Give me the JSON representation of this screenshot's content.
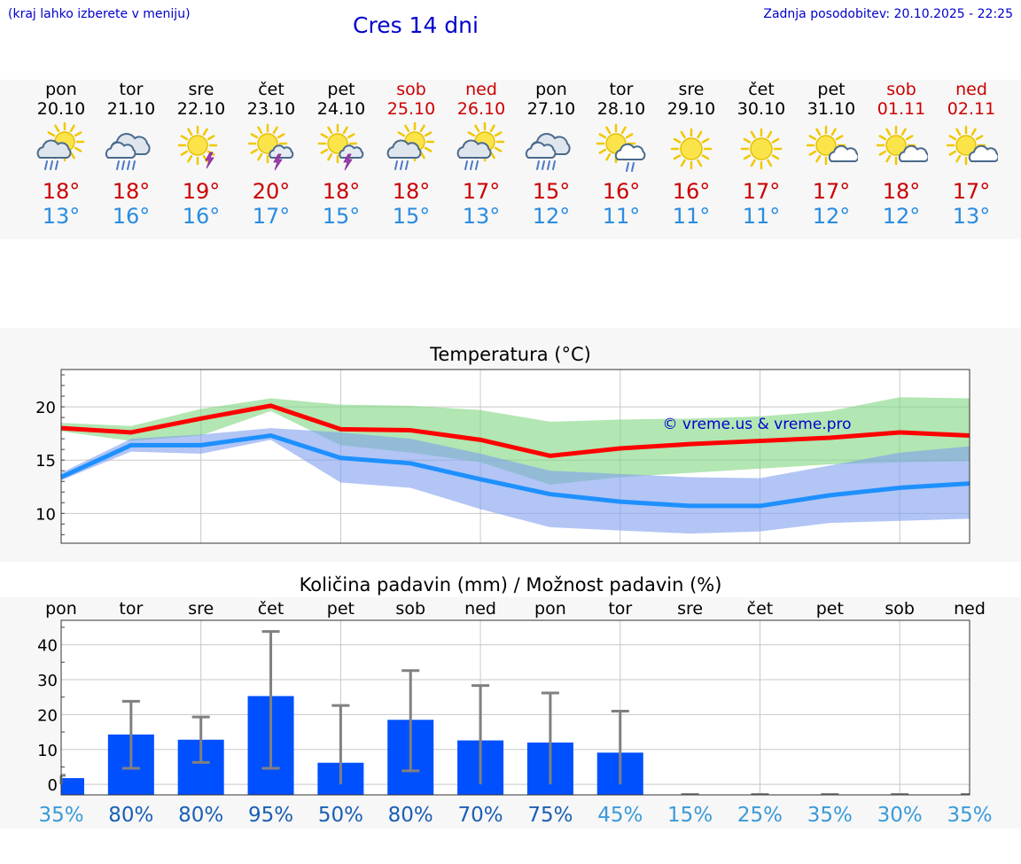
{
  "header": {
    "hint": "(kraj lahko izberete v meniju)",
    "title": "Cres 14 dni",
    "updated": "Zadnja posodobitev: 20.10.2025 - 22:25"
  },
  "days": [
    {
      "name": "pon",
      "date": "20.10",
      "weekend": false,
      "icon": "sun-cloud-rain-icon",
      "max": "18°",
      "min": "13°"
    },
    {
      "name": "tor",
      "date": "21.10",
      "weekend": false,
      "icon": "cloud-rain-icon",
      "max": "18°",
      "min": "16°"
    },
    {
      "name": "sre",
      "date": "22.10",
      "weekend": false,
      "icon": "sun-thunder-icon",
      "max": "19°",
      "min": "16°"
    },
    {
      "name": "čet",
      "date": "23.10",
      "weekend": false,
      "icon": "sun-cloud-thunder-icon",
      "max": "20°",
      "min": "17°"
    },
    {
      "name": "pet",
      "date": "24.10",
      "weekend": false,
      "icon": "sun-cloud-thunder-icon",
      "max": "18°",
      "min": "15°"
    },
    {
      "name": "sob",
      "date": "25.10",
      "weekend": true,
      "icon": "sun-cloud-rain-icon",
      "max": "18°",
      "min": "15°"
    },
    {
      "name": "ned",
      "date": "26.10",
      "weekend": true,
      "icon": "sun-cloud-rain-icon",
      "max": "17°",
      "min": "13°"
    },
    {
      "name": "pon",
      "date": "27.10",
      "weekend": false,
      "icon": "cloud-rain-icon",
      "max": "15°",
      "min": "12°"
    },
    {
      "name": "tor",
      "date": "28.10",
      "weekend": false,
      "icon": "sun-cloud-drizzle-icon",
      "max": "16°",
      "min": "11°"
    },
    {
      "name": "sre",
      "date": "29.10",
      "weekend": false,
      "icon": "sun-icon",
      "max": "16°",
      "min": "11°"
    },
    {
      "name": "čet",
      "date": "30.10",
      "weekend": false,
      "icon": "sun-icon",
      "max": "17°",
      "min": "11°"
    },
    {
      "name": "pet",
      "date": "31.10",
      "weekend": false,
      "icon": "sun-small-cloud-icon",
      "max": "17°",
      "min": "12°"
    },
    {
      "name": "sob",
      "date": "01.11",
      "weekend": true,
      "icon": "sun-small-cloud-icon",
      "max": "18°",
      "min": "12°"
    },
    {
      "name": "ned",
      "date": "02.11",
      "weekend": true,
      "icon": "sun-small-cloud-icon",
      "max": "17°",
      "min": "13°"
    }
  ],
  "colors": {
    "max_line": "#ff0000",
    "min_line": "#1e90ff",
    "max_band": "#7fd67f",
    "min_band": "#7f9fef",
    "bar": "#0050ff",
    "whisker": "#808080",
    "weekend_text": "#cc0000",
    "min_text": "#2a8ce0",
    "pct_high": "#1a5fb4",
    "pct_low": "#3a9ad9"
  },
  "chart_data": [
    {
      "type": "line",
      "title": "Temperatura (°C)",
      "watermark": "© vreme.us & vreme.pro",
      "x_count": 14,
      "ylim": [
        7.2,
        23.5
      ],
      "yticks": [
        10,
        15,
        20
      ],
      "grid": true,
      "series": [
        {
          "values": [
            18.0,
            17.6,
            18.9,
            20.1,
            17.9,
            17.8,
            16.9,
            15.4,
            16.1,
            16.5,
            16.8,
            17.1,
            17.6,
            17.3
          ]
        },
        {
          "values": [
            13.4,
            16.4,
            16.4,
            17.3,
            15.2,
            14.7,
            13.2,
            11.8,
            11.1,
            10.7,
            10.7,
            11.7,
            12.4,
            12.8
          ]
        }
      ],
      "max_band": {
        "low": [
          17.7,
          16.8,
          17.3,
          19.6,
          16.4,
          15.7,
          14.8,
          12.7,
          13.4,
          13.8,
          14.2,
          14.6,
          14.8,
          14.9
        ],
        "high": [
          18.5,
          18.2,
          19.8,
          20.8,
          20.2,
          20.1,
          19.7,
          18.6,
          18.8,
          18.9,
          19.1,
          19.6,
          20.9,
          20.8
        ]
      },
      "min_band": {
        "low": [
          13.1,
          15.8,
          15.6,
          16.9,
          12.9,
          12.4,
          10.4,
          8.7,
          8.4,
          8.1,
          8.3,
          9.1,
          9.3,
          9.5
        ],
        "high": [
          13.8,
          17.0,
          17.4,
          18.0,
          17.6,
          17.0,
          15.6,
          14.0,
          13.7,
          13.4,
          13.3,
          14.5,
          15.7,
          16.3
        ]
      }
    },
    {
      "type": "bar",
      "title": "Količina padavin (mm) / Možnost padavin (%)",
      "categories": [
        "pon",
        "tor",
        "sre",
        "čet",
        "pet",
        "sob",
        "ned",
        "pon",
        "tor",
        "sre",
        "čet",
        "pet",
        "sob",
        "ned"
      ],
      "ylim": [
        -3,
        47
      ],
      "yticks": [
        0,
        10,
        20,
        30,
        40
      ],
      "grid": true,
      "values": [
        1.8,
        14.3,
        12.8,
        25.3,
        6.2,
        18.5,
        12.6,
        12.0,
        9.1,
        0,
        0,
        0,
        0,
        0
      ],
      "error_low": [
        0,
        4.6,
        6.3,
        4.6,
        0,
        3.9,
        0,
        0,
        0,
        0,
        0,
        0,
        0,
        0
      ],
      "error_high": [
        2.6,
        23.8,
        19.3,
        43.8,
        22.6,
        32.6,
        28.3,
        26.2,
        21.0,
        0,
        0,
        0,
        0,
        0
      ],
      "probability": [
        "35%",
        "80%",
        "80%",
        "95%",
        "50%",
        "80%",
        "70%",
        "75%",
        "45%",
        "15%",
        "25%",
        "35%",
        "30%",
        "35%"
      ]
    }
  ]
}
